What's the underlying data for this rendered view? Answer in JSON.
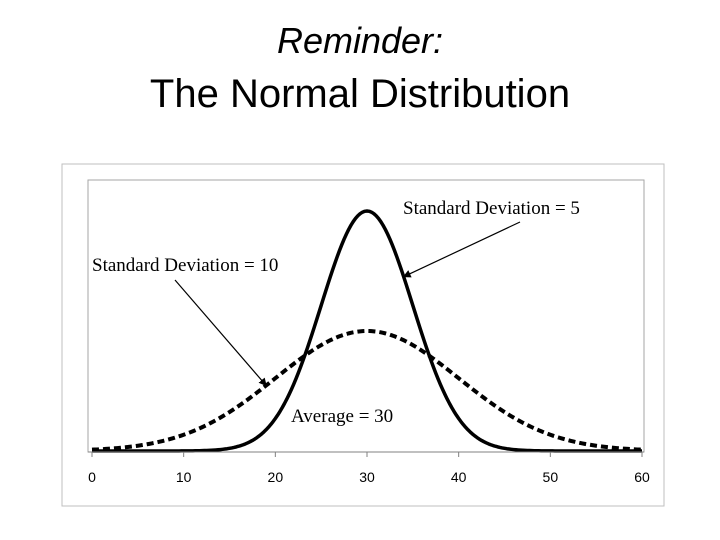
{
  "slide": {
    "title_line1": "Reminder:",
    "title_line2": "The Normal Distribution"
  },
  "chart_data": {
    "type": "line",
    "title": "",
    "xlabel": "",
    "ylabel": "",
    "xlim": [
      0,
      60
    ],
    "x_ticks": [
      0,
      10,
      20,
      30,
      40,
      50,
      60
    ],
    "y_axis_visible": false,
    "grid": false,
    "legend": "none",
    "series": [
      {
        "mean": 30,
        "sd": 5,
        "line_style": "solid",
        "color": "#000000"
      },
      {
        "mean": 30,
        "sd": 10,
        "line_style": "dashed",
        "color": "#000000"
      }
    ],
    "annotations": [
      {
        "text": "Standard Deviation = 5",
        "points_to": {
          "x": 34,
          "series": 0
        }
      },
      {
        "text": "Standard Deviation = 10",
        "points_to": {
          "x": 19,
          "series": 1
        }
      },
      {
        "text": "Average = 30",
        "points_to": null
      }
    ]
  }
}
